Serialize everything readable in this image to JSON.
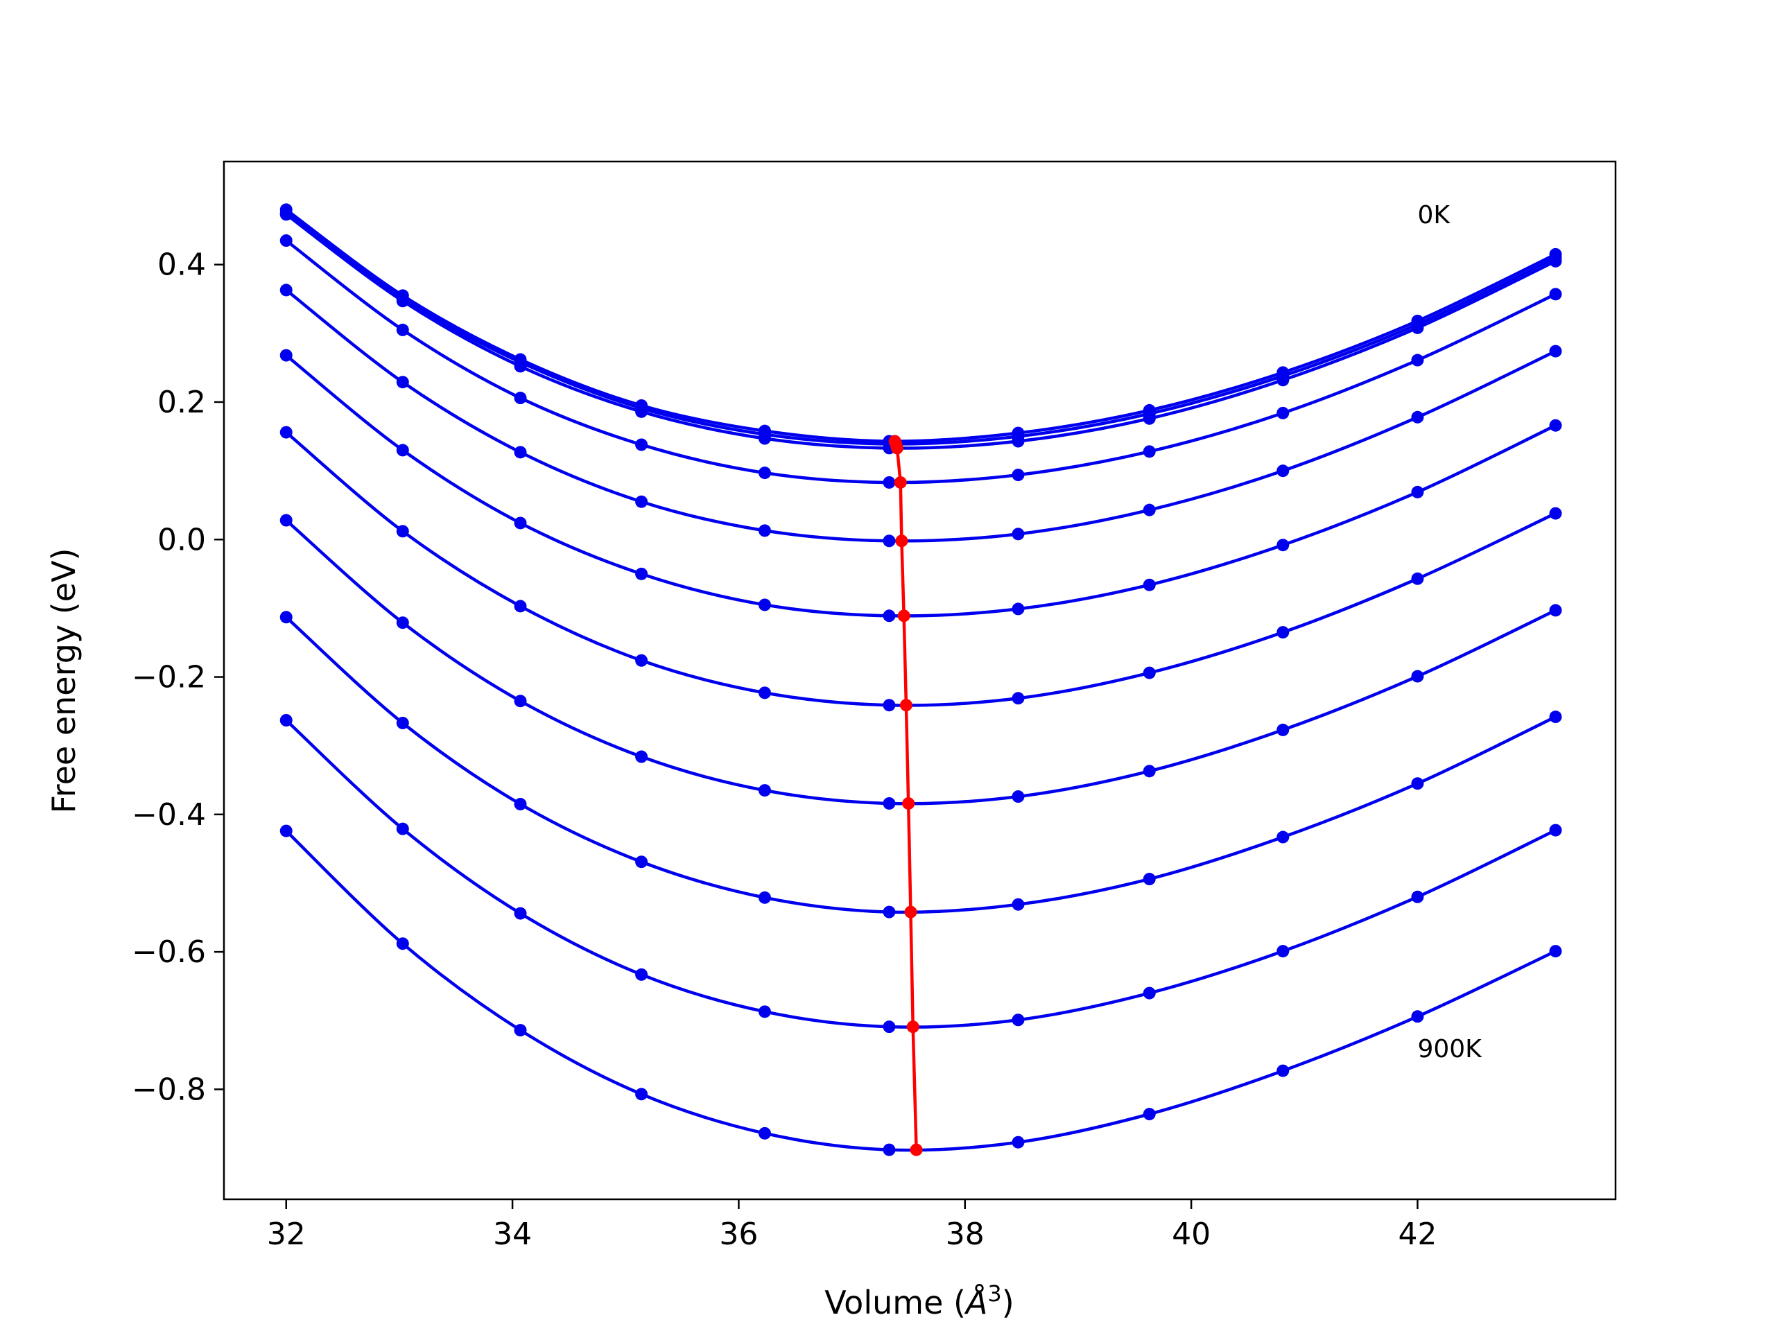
{
  "chart_data": {
    "type": "line",
    "xlabel_prefix": "Volume (",
    "xlabel_unit": "Å",
    "xlabel_exp": "3",
    "xlabel_suffix": ")",
    "ylabel": "Free energy (eV)",
    "xlim": [
      31.45,
      43.75
    ],
    "ylim": [
      -0.96,
      0.55
    ],
    "xticks": [
      32,
      34,
      36,
      38,
      40,
      42
    ],
    "xtick_labels": [
      "32",
      "34",
      "36",
      "38",
      "40",
      "42"
    ],
    "yticks": [
      -0.8,
      -0.6,
      -0.4,
      -0.2,
      0.0,
      0.2,
      0.4
    ],
    "ytick_labels": [
      "−0.8",
      "−0.6",
      "−0.4",
      "−0.2",
      "0.0",
      "0.2",
      "0.4"
    ],
    "grid": false,
    "colors": {
      "series": "#0000ee",
      "min_line": "#ff0000"
    },
    "x": [
      32.0,
      33.03,
      34.07,
      35.14,
      36.23,
      37.33,
      38.47,
      39.63,
      40.81,
      42.0,
      43.22
    ],
    "series": [
      {
        "values": [
          0.48,
          0.355,
          0.262,
          0.195,
          0.158,
          0.143,
          0.155,
          0.188,
          0.243,
          0.318,
          0.415
        ]
      },
      {
        "values": [
          0.475,
          0.35,
          0.258,
          0.191,
          0.153,
          0.139,
          0.15,
          0.183,
          0.238,
          0.313,
          0.41
        ]
      },
      {
        "values": [
          0.473,
          0.347,
          0.252,
          0.186,
          0.147,
          0.133,
          0.143,
          0.176,
          0.232,
          0.308,
          0.405
        ]
      },
      {
        "values": [
          0.435,
          0.305,
          0.206,
          0.138,
          0.097,
          0.083,
          0.094,
          0.128,
          0.184,
          0.261,
          0.357
        ]
      },
      {
        "values": [
          0.363,
          0.229,
          0.127,
          0.055,
          0.013,
          -0.002,
          0.008,
          0.043,
          0.1,
          0.178,
          0.274
        ]
      },
      {
        "values": [
          0.268,
          0.13,
          0.024,
          -0.05,
          -0.095,
          -0.111,
          -0.101,
          -0.066,
          -0.008,
          0.069,
          0.166
        ]
      },
      {
        "values": [
          0.156,
          0.012,
          -0.097,
          -0.176,
          -0.223,
          -0.241,
          -0.231,
          -0.194,
          -0.135,
          -0.057,
          0.038
        ]
      },
      {
        "values": [
          0.028,
          -0.121,
          -0.235,
          -0.316,
          -0.365,
          -0.384,
          -0.374,
          -0.337,
          -0.277,
          -0.199,
          -0.103
        ]
      },
      {
        "values": [
          -0.113,
          -0.267,
          -0.385,
          -0.469,
          -0.521,
          -0.542,
          -0.531,
          -0.494,
          -0.433,
          -0.355,
          -0.258
        ]
      },
      {
        "values": [
          -0.263,
          -0.421,
          -0.544,
          -0.633,
          -0.687,
          -0.709,
          -0.699,
          -0.66,
          -0.599,
          -0.52,
          -0.423
        ]
      },
      {
        "values": [
          -0.424,
          -0.588,
          -0.714,
          -0.807,
          -0.864,
          -0.888,
          -0.877,
          -0.836,
          -0.773,
          -0.694,
          -0.599
        ]
      }
    ],
    "minima": {
      "x": [
        37.38,
        37.39,
        37.4,
        37.43,
        37.44,
        37.46,
        37.48,
        37.5,
        37.52,
        37.54,
        37.57
      ],
      "y": [
        0.143,
        0.139,
        0.133,
        0.083,
        -0.002,
        -0.111,
        -0.241,
        -0.384,
        -0.542,
        -0.709,
        -0.888
      ]
    },
    "annotations": [
      {
        "text": "0K",
        "x": 42.0,
        "y": 0.46
      },
      {
        "text": "900K",
        "x": 42.0,
        "y": -0.753
      }
    ]
  }
}
